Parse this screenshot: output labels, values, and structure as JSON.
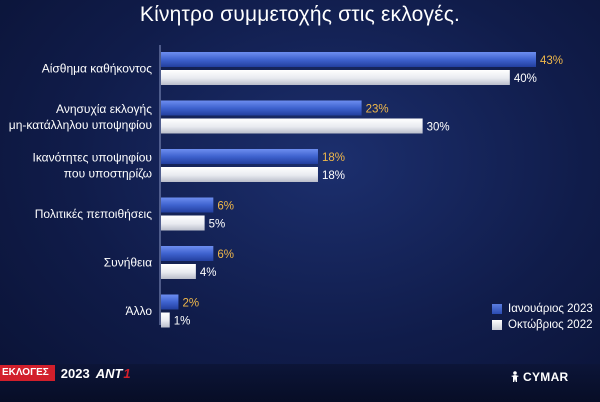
{
  "title": "Κίνητρο συμμετοχής στις εκλογές.",
  "chart_data": {
    "type": "bar",
    "orientation": "horizontal",
    "categories": [
      [
        "Αίσθημα καθήκοντος"
      ],
      [
        "Ανησυχία εκλογής",
        "μη-κατάλληλου υποψηφίου"
      ],
      [
        "Ικανότητες  υποψηφίου",
        "που υποστηρίζω"
      ],
      [
        "Πολιτικές πεποιθήσεις"
      ],
      [
        "Συνήθεια"
      ],
      [
        "Άλλο"
      ]
    ],
    "series": [
      {
        "name": "Ιανουάριος 2023",
        "values": [
          43,
          23,
          18,
          6,
          6,
          2
        ],
        "labels": [
          "43%",
          "23%",
          "18%",
          "6%",
          "6%",
          "2%"
        ],
        "color": "#3f63cf",
        "label_color": "#f0b84a"
      },
      {
        "name": "Οκτώβριος 2022",
        "values": [
          40,
          30,
          18,
          5,
          4,
          1
        ],
        "labels": [
          "40%",
          "30%",
          "18%",
          "5%",
          "4%",
          "1%"
        ],
        "color": "#e8eaf0",
        "label_color": "#ffffff"
      }
    ],
    "legend_position": "bottom-right",
    "xlim": [
      0,
      43
    ]
  },
  "footer": {
    "tag": "ΕΚΛΟΓΕΣ",
    "year": "2023",
    "channel": "ANT",
    "channel_suffix": "1",
    "pollster": "CYMAR"
  },
  "colors": {
    "background": "#101c4a",
    "blue_bar": "#3f63cf",
    "white_bar": "#e8eaf0",
    "highlight_label": "#f0b84a",
    "brand_red": "#d21f2b"
  }
}
